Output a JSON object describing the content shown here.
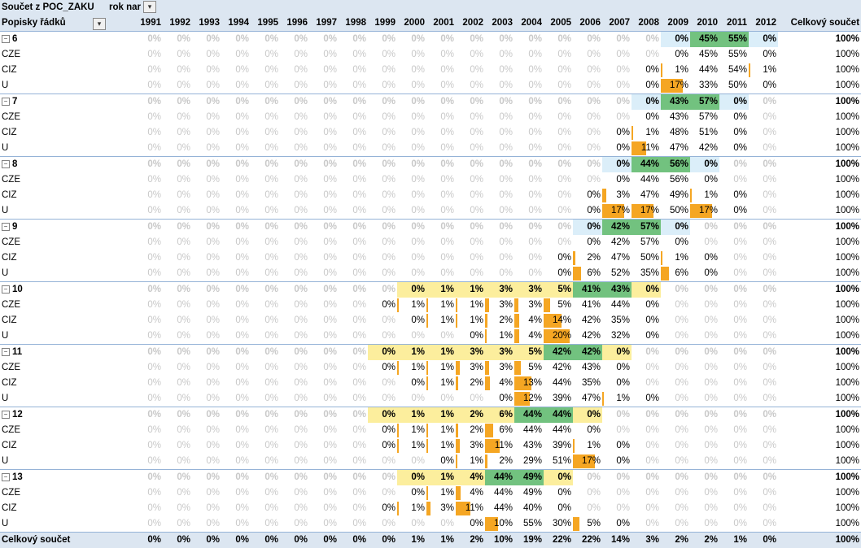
{
  "title": {
    "measure": "Součet z POC_ZAKU",
    "column_field": "rok nar",
    "filter_icon": "filter-icon"
  },
  "header": {
    "row_label": "Popisky řádků",
    "total_label": "Celkový součet"
  },
  "years": [
    "1991",
    "1992",
    "1993",
    "1994",
    "1995",
    "1996",
    "1997",
    "1998",
    "1999",
    "2000",
    "2001",
    "2002",
    "2003",
    "2004",
    "2005",
    "2006",
    "2007",
    "2008",
    "2009",
    "2010",
    "2011",
    "2012"
  ],
  "colors": {
    "highlight_yellow": "#fcee9d",
    "highlight_green": "#72c27f",
    "highlight_light_blue": "#dbeef9",
    "data_bar": "#f5a623",
    "header_blue": "#dce6f1"
  },
  "rows": [
    {
      "type": "group",
      "label": "6",
      "expander": "−",
      "values": [
        "0%",
        "0%",
        "0%",
        "0%",
        "0%",
        "0%",
        "0%",
        "0%",
        "0%",
        "0%",
        "0%",
        "0%",
        "0%",
        "0%",
        "0%",
        "0%",
        "0%",
        "0%",
        "0%",
        "45%",
        "55%",
        "0%"
      ],
      "total": "100%"
    },
    {
      "type": "sub",
      "label": "CZE",
      "values": [
        "0%",
        "0%",
        "0%",
        "0%",
        "0%",
        "0%",
        "0%",
        "0%",
        "0%",
        "0%",
        "0%",
        "0%",
        "0%",
        "0%",
        "0%",
        "0%",
        "0%",
        "0%",
        "0%",
        "45%",
        "55%",
        "0%"
      ],
      "total": "100%"
    },
    {
      "type": "sub",
      "label": "CIZ",
      "values": [
        "0%",
        "0%",
        "0%",
        "0%",
        "0%",
        "0%",
        "0%",
        "0%",
        "0%",
        "0%",
        "0%",
        "0%",
        "0%",
        "0%",
        "0%",
        "0%",
        "0%",
        "0%",
        "1%",
        "44%",
        "54%",
        "1%"
      ],
      "total": "100%"
    },
    {
      "type": "sub",
      "label": "U",
      "values": [
        "0%",
        "0%",
        "0%",
        "0%",
        "0%",
        "0%",
        "0%",
        "0%",
        "0%",
        "0%",
        "0%",
        "0%",
        "0%",
        "0%",
        "0%",
        "0%",
        "0%",
        "0%",
        "17%",
        "33%",
        "50%",
        "0%"
      ],
      "total": "100%"
    },
    {
      "type": "group",
      "label": "7",
      "expander": "−",
      "values": [
        "0%",
        "0%",
        "0%",
        "0%",
        "0%",
        "0%",
        "0%",
        "0%",
        "0%",
        "0%",
        "0%",
        "0%",
        "0%",
        "0%",
        "0%",
        "0%",
        "0%",
        "0%",
        "43%",
        "57%",
        "0%",
        "0%"
      ],
      "total": "100%"
    },
    {
      "type": "sub",
      "label": "CZE",
      "values": [
        "0%",
        "0%",
        "0%",
        "0%",
        "0%",
        "0%",
        "0%",
        "0%",
        "0%",
        "0%",
        "0%",
        "0%",
        "0%",
        "0%",
        "0%",
        "0%",
        "0%",
        "0%",
        "43%",
        "57%",
        "0%",
        "0%"
      ],
      "total": "100%"
    },
    {
      "type": "sub",
      "label": "CIZ",
      "values": [
        "0%",
        "0%",
        "0%",
        "0%",
        "0%",
        "0%",
        "0%",
        "0%",
        "0%",
        "0%",
        "0%",
        "0%",
        "0%",
        "0%",
        "0%",
        "0%",
        "0%",
        "1%",
        "48%",
        "51%",
        "0%",
        "0%"
      ],
      "total": "100%"
    },
    {
      "type": "sub",
      "label": "U",
      "values": [
        "0%",
        "0%",
        "0%",
        "0%",
        "0%",
        "0%",
        "0%",
        "0%",
        "0%",
        "0%",
        "0%",
        "0%",
        "0%",
        "0%",
        "0%",
        "0%",
        "0%",
        "11%",
        "47%",
        "42%",
        "0%",
        "0%"
      ],
      "total": "100%"
    },
    {
      "type": "group",
      "label": "8",
      "expander": "−",
      "values": [
        "0%",
        "0%",
        "0%",
        "0%",
        "0%",
        "0%",
        "0%",
        "0%",
        "0%",
        "0%",
        "0%",
        "0%",
        "0%",
        "0%",
        "0%",
        "0%",
        "0%",
        "44%",
        "56%",
        "0%",
        "0%",
        "0%"
      ],
      "total": "100%"
    },
    {
      "type": "sub",
      "label": "CZE",
      "values": [
        "0%",
        "0%",
        "0%",
        "0%",
        "0%",
        "0%",
        "0%",
        "0%",
        "0%",
        "0%",
        "0%",
        "0%",
        "0%",
        "0%",
        "0%",
        "0%",
        "0%",
        "44%",
        "56%",
        "0%",
        "0%",
        "0%"
      ],
      "total": "100%"
    },
    {
      "type": "sub",
      "label": "CIZ",
      "values": [
        "0%",
        "0%",
        "0%",
        "0%",
        "0%",
        "0%",
        "0%",
        "0%",
        "0%",
        "0%",
        "0%",
        "0%",
        "0%",
        "0%",
        "0%",
        "0%",
        "3%",
        "47%",
        "49%",
        "1%",
        "0%",
        "0%"
      ],
      "total": "100%"
    },
    {
      "type": "sub",
      "label": "U",
      "values": [
        "0%",
        "0%",
        "0%",
        "0%",
        "0%",
        "0%",
        "0%",
        "0%",
        "0%",
        "0%",
        "0%",
        "0%",
        "0%",
        "0%",
        "0%",
        "0%",
        "17%",
        "17%",
        "50%",
        "17%",
        "0%",
        "0%"
      ],
      "total": "100%"
    },
    {
      "type": "group",
      "label": "9",
      "expander": "−",
      "values": [
        "0%",
        "0%",
        "0%",
        "0%",
        "0%",
        "0%",
        "0%",
        "0%",
        "0%",
        "0%",
        "0%",
        "0%",
        "0%",
        "0%",
        "0%",
        "0%",
        "42%",
        "57%",
        "0%",
        "0%",
        "0%",
        "0%"
      ],
      "total": "100%"
    },
    {
      "type": "sub",
      "label": "CZE",
      "values": [
        "0%",
        "0%",
        "0%",
        "0%",
        "0%",
        "0%",
        "0%",
        "0%",
        "0%",
        "0%",
        "0%",
        "0%",
        "0%",
        "0%",
        "0%",
        "0%",
        "42%",
        "57%",
        "0%",
        "0%",
        "0%",
        "0%"
      ],
      "total": "100%"
    },
    {
      "type": "sub",
      "label": "CIZ",
      "values": [
        "0%",
        "0%",
        "0%",
        "0%",
        "0%",
        "0%",
        "0%",
        "0%",
        "0%",
        "0%",
        "0%",
        "0%",
        "0%",
        "0%",
        "0%",
        "2%",
        "47%",
        "50%",
        "1%",
        "0%",
        "0%",
        "0%"
      ],
      "total": "100%"
    },
    {
      "type": "sub",
      "label": "U",
      "values": [
        "0%",
        "0%",
        "0%",
        "0%",
        "0%",
        "0%",
        "0%",
        "0%",
        "0%",
        "0%",
        "0%",
        "0%",
        "0%",
        "0%",
        "0%",
        "6%",
        "52%",
        "35%",
        "6%",
        "0%",
        "0%",
        "0%"
      ],
      "total": "100%"
    },
    {
      "type": "group",
      "label": "10",
      "expander": "−",
      "values": [
        "0%",
        "0%",
        "0%",
        "0%",
        "0%",
        "0%",
        "0%",
        "0%",
        "0%",
        "0%",
        "1%",
        "1%",
        "3%",
        "3%",
        "5%",
        "41%",
        "43%",
        "0%",
        "0%",
        "0%",
        "0%",
        "0%"
      ],
      "total": "100%"
    },
    {
      "type": "sub",
      "label": "CZE",
      "values": [
        "0%",
        "0%",
        "0%",
        "0%",
        "0%",
        "0%",
        "0%",
        "0%",
        "0%",
        "1%",
        "1%",
        "1%",
        "3%",
        "3%",
        "5%",
        "41%",
        "44%",
        "0%",
        "0%",
        "0%",
        "0%",
        "0%"
      ],
      "total": "100%"
    },
    {
      "type": "sub",
      "label": "CIZ",
      "values": [
        "0%",
        "0%",
        "0%",
        "0%",
        "0%",
        "0%",
        "0%",
        "0%",
        "0%",
        "0%",
        "1%",
        "1%",
        "2%",
        "4%",
        "14%",
        "42%",
        "35%",
        "0%",
        "0%",
        "0%",
        "0%",
        "0%"
      ],
      "total": "100%"
    },
    {
      "type": "sub",
      "label": "U",
      "values": [
        "0%",
        "0%",
        "0%",
        "0%",
        "0%",
        "0%",
        "0%",
        "0%",
        "0%",
        "0%",
        "0%",
        "0%",
        "1%",
        "4%",
        "20%",
        "42%",
        "32%",
        "0%",
        "0%",
        "0%",
        "0%",
        "0%"
      ],
      "total": "100%"
    },
    {
      "type": "group",
      "label": "11",
      "expander": "−",
      "values": [
        "0%",
        "0%",
        "0%",
        "0%",
        "0%",
        "0%",
        "0%",
        "0%",
        "0%",
        "1%",
        "1%",
        "3%",
        "3%",
        "5%",
        "42%",
        "42%",
        "0%",
        "0%",
        "0%",
        "0%",
        "0%",
        "0%"
      ],
      "total": "100%"
    },
    {
      "type": "sub",
      "label": "CZE",
      "values": [
        "0%",
        "0%",
        "0%",
        "0%",
        "0%",
        "0%",
        "0%",
        "0%",
        "0%",
        "1%",
        "1%",
        "3%",
        "3%",
        "5%",
        "42%",
        "43%",
        "0%",
        "0%",
        "0%",
        "0%",
        "0%",
        "0%"
      ],
      "total": "100%"
    },
    {
      "type": "sub",
      "label": "CIZ",
      "values": [
        "0%",
        "0%",
        "0%",
        "0%",
        "0%",
        "0%",
        "0%",
        "0%",
        "0%",
        "0%",
        "1%",
        "2%",
        "4%",
        "13%",
        "44%",
        "35%",
        "0%",
        "0%",
        "0%",
        "0%",
        "0%",
        "0%"
      ],
      "total": "100%"
    },
    {
      "type": "sub",
      "label": "U",
      "values": [
        "0%",
        "0%",
        "0%",
        "0%",
        "0%",
        "0%",
        "0%",
        "0%",
        "0%",
        "0%",
        "0%",
        "0%",
        "0%",
        "12%",
        "39%",
        "47%",
        "1%",
        "0%",
        "0%",
        "0%",
        "0%",
        "0%"
      ],
      "total": "100%"
    },
    {
      "type": "group",
      "label": "12",
      "expander": "−",
      "values": [
        "0%",
        "0%",
        "0%",
        "0%",
        "0%",
        "0%",
        "0%",
        "0%",
        "0%",
        "1%",
        "1%",
        "2%",
        "6%",
        "44%",
        "44%",
        "0%",
        "0%",
        "0%",
        "0%",
        "0%",
        "0%",
        "0%"
      ],
      "total": "100%"
    },
    {
      "type": "sub",
      "label": "CZE",
      "values": [
        "0%",
        "0%",
        "0%",
        "0%",
        "0%",
        "0%",
        "0%",
        "0%",
        "0%",
        "1%",
        "1%",
        "2%",
        "6%",
        "44%",
        "44%",
        "0%",
        "0%",
        "0%",
        "0%",
        "0%",
        "0%",
        "0%"
      ],
      "total": "100%"
    },
    {
      "type": "sub",
      "label": "CIZ",
      "values": [
        "0%",
        "0%",
        "0%",
        "0%",
        "0%",
        "0%",
        "0%",
        "0%",
        "0%",
        "1%",
        "1%",
        "3%",
        "11%",
        "43%",
        "39%",
        "1%",
        "0%",
        "0%",
        "0%",
        "0%",
        "0%",
        "0%"
      ],
      "total": "100%"
    },
    {
      "type": "sub",
      "label": "U",
      "values": [
        "0%",
        "0%",
        "0%",
        "0%",
        "0%",
        "0%",
        "0%",
        "0%",
        "0%",
        "0%",
        "0%",
        "1%",
        "2%",
        "29%",
        "51%",
        "17%",
        "0%",
        "0%",
        "0%",
        "0%",
        "0%",
        "0%"
      ],
      "total": "100%"
    },
    {
      "type": "group",
      "label": "13",
      "expander": "−",
      "values": [
        "0%",
        "0%",
        "0%",
        "0%",
        "0%",
        "0%",
        "0%",
        "0%",
        "0%",
        "0%",
        "1%",
        "4%",
        "44%",
        "49%",
        "0%",
        "0%",
        "0%",
        "0%",
        "0%",
        "0%",
        "0%",
        "0%"
      ],
      "total": "100%"
    },
    {
      "type": "sub",
      "label": "CZE",
      "values": [
        "0%",
        "0%",
        "0%",
        "0%",
        "0%",
        "0%",
        "0%",
        "0%",
        "0%",
        "0%",
        "1%",
        "4%",
        "44%",
        "49%",
        "0%",
        "0%",
        "0%",
        "0%",
        "0%",
        "0%",
        "0%",
        "0%"
      ],
      "total": "100%"
    },
    {
      "type": "sub",
      "label": "CIZ",
      "values": [
        "0%",
        "0%",
        "0%",
        "0%",
        "0%",
        "0%",
        "0%",
        "0%",
        "0%",
        "1%",
        "3%",
        "11%",
        "44%",
        "40%",
        "0%",
        "0%",
        "0%",
        "0%",
        "0%",
        "0%",
        "0%",
        "0%"
      ],
      "total": "100%"
    },
    {
      "type": "sub",
      "label": "U",
      "values": [
        "0%",
        "0%",
        "0%",
        "0%",
        "0%",
        "0%",
        "0%",
        "0%",
        "0%",
        "0%",
        "0%",
        "0%",
        "10%",
        "55%",
        "30%",
        "5%",
        "0%",
        "0%",
        "0%",
        "0%",
        "0%",
        "0%"
      ],
      "total": "100%"
    }
  ],
  "grand_total": {
    "label": "Celkový součet",
    "values": [
      "0%",
      "0%",
      "0%",
      "0%",
      "0%",
      "0%",
      "0%",
      "0%",
      "0%",
      "1%",
      "1%",
      "2%",
      "10%",
      "19%",
      "22%",
      "22%",
      "14%",
      "3%",
      "2%",
      "2%",
      "1%",
      "0%"
    ],
    "total": "100%"
  }
}
